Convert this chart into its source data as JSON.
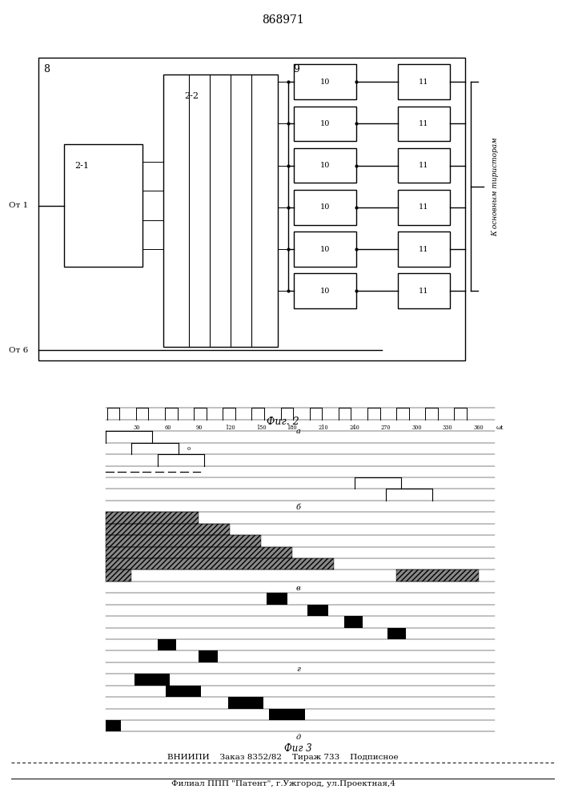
{
  "title": "868971",
  "fig2_label": "Фиг. 2",
  "fig3_label": "Фиг 3",
  "bottom_line1": "ВНИИПИ    Заказ 8352/82    Тираж 733    Подписное",
  "bottom_line2": "Филиал ППП \"Патент\", г.Ужгород, ул.Проектная,4",
  "label_8": "8",
  "label_9": "9",
  "label_10": "10",
  "label_11": "11",
  "label_21": "2-1",
  "label_22": "2-2",
  "label_ot1": "От 1",
  "label_ot6": "От 6",
  "label_k": "К основным тиристорам",
  "tick_labels": [
    "30",
    "60",
    "90",
    "120",
    "150",
    "180",
    "210",
    "240",
    "270",
    "300",
    "330",
    "360"
  ],
  "omega_label": "ωt",
  "section_a": "а",
  "section_b": "б",
  "section_v": "в",
  "section_g": "г",
  "section_d": "д"
}
